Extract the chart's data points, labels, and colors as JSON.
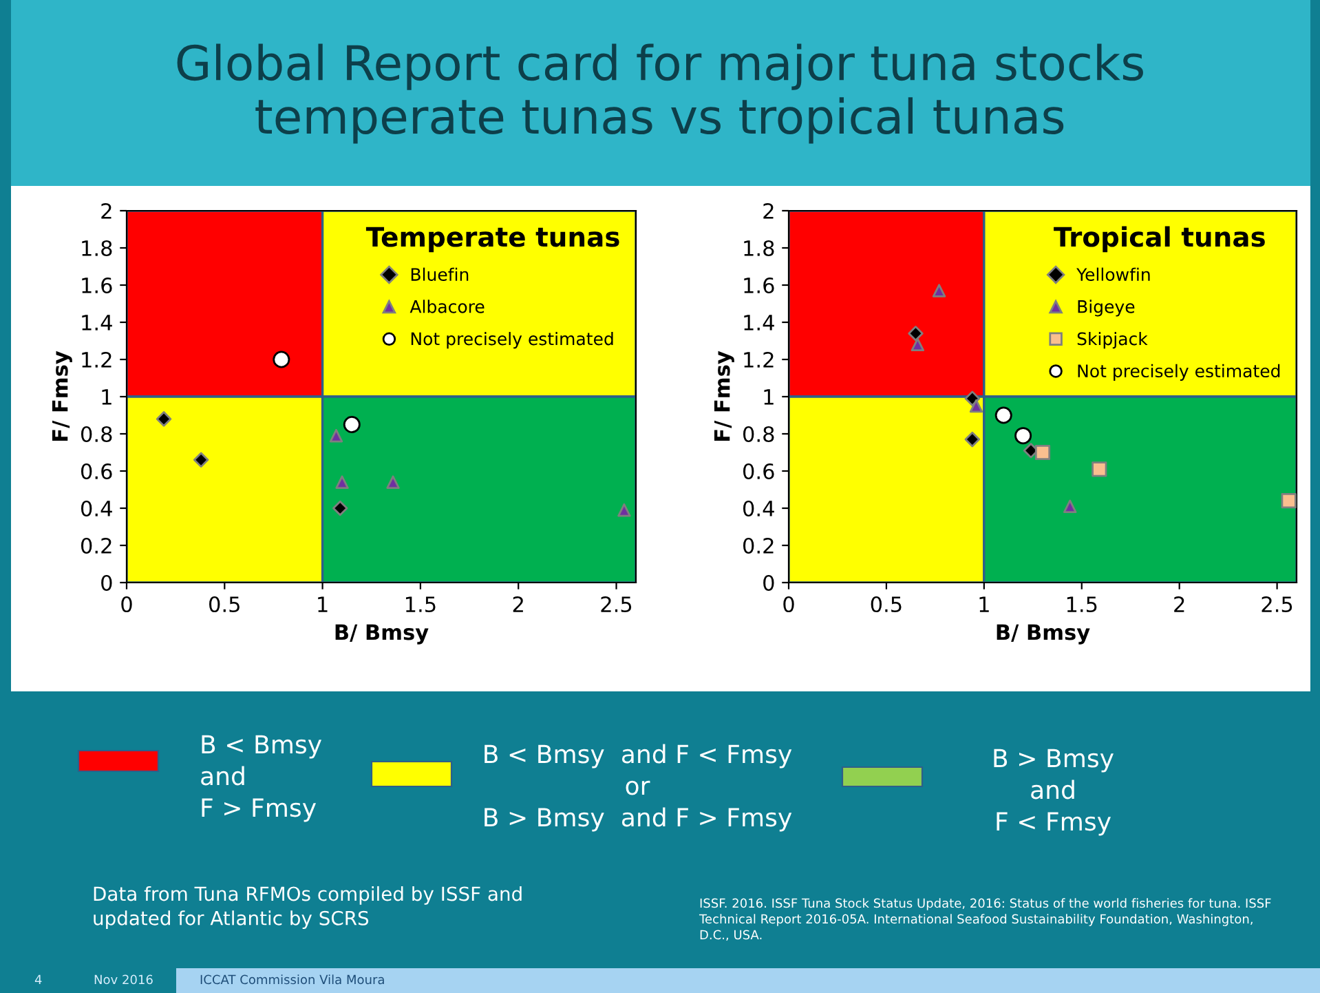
{
  "chart_data": [
    {
      "type": "scatter",
      "title": "Global Report card for major tuna stocks\ntemperate tunas vs tropical tunas",
      "legend_title": "Temperate tunas",
      "xlabel": "B/ Bmsy",
      "ylabel": "F/ Fmsy",
      "xlim": [
        0,
        2.6
      ],
      "ylim": [
        0,
        2
      ],
      "xticks": [
        0,
        0.5,
        1,
        1.5,
        2,
        2.5
      ],
      "yticks": [
        0,
        0.2,
        0.4,
        0.6,
        0.8,
        1,
        1.2,
        1.4,
        1.6,
        1.8,
        2
      ],
      "grid": false,
      "legend": "top right",
      "series": [
        {
          "name": "Bluefin",
          "color": "#000000",
          "marker": "diamond",
          "x": [
            0.19,
            0.38,
            1.09
          ],
          "values": [
            0.88,
            0.66,
            0.4
          ]
        },
        {
          "name": "Albacore",
          "color": "#7030a0",
          "marker": "triangle",
          "x": [
            1.07,
            1.1,
            1.36,
            2.54
          ],
          "values": [
            0.79,
            0.54,
            0.54,
            0.39
          ]
        },
        {
          "name": "Not precisely estimated",
          "color": "#ffffff",
          "marker": "circle",
          "x": [
            0.79,
            1.15
          ],
          "values": [
            1.2,
            0.85
          ]
        }
      ],
      "annotations": [
        "Data from Tuna RFMOs compiled by ISSF and\nupdated for Atlantic by SCRS",
        "ISSF. 2016. ISSF Tuna Stock Status Update, 2016: Status of the world fisheries for tuna. ISSF\nTechnical Report 2016-05A. International Seafood Sustainability Foundation, Washington,\nD.C., USA.",
        "4",
        "Nov 2016",
        "ICCAT Commission Vila Moura",
        "B < Bmsy\nand\nF > Fmsy",
        "B < Bmsy  and F < Fmsy\nor\nB > Bmsy  and F > Fmsy",
        "B > Bmsy\nand\nF < Fmsy"
      ]
    },
    {
      "type": "scatter",
      "legend_title": "Tropical tunas",
      "xlabel": "B/ Bmsy",
      "ylabel": "F/ Fmsy",
      "xlim": [
        0,
        2.6
      ],
      "ylim": [
        0,
        2
      ],
      "xticks": [
        0,
        0.5,
        1,
        1.5,
        2,
        2.5
      ],
      "yticks": [
        0,
        0.2,
        0.4,
        0.6,
        0.8,
        1,
        1.2,
        1.4,
        1.6,
        1.8,
        2
      ],
      "grid": false,
      "legend": "top right",
      "series": [
        {
          "name": "Yellowfin",
          "color": "#000000",
          "marker": "diamond",
          "x": [
            0.65,
            0.94,
            0.94,
            1.24
          ],
          "values": [
            1.34,
            0.99,
            0.77,
            0.71
          ]
        },
        {
          "name": "Bigeye",
          "color": "#7030a0",
          "marker": "triangle",
          "x": [
            0.77,
            0.66,
            0.96,
            1.44
          ],
          "values": [
            1.57,
            1.28,
            0.95,
            0.41
          ]
        },
        {
          "name": "Skipjack",
          "color": "#fabf8f",
          "marker": "square",
          "x": [
            1.3,
            1.59,
            2.56
          ],
          "values": [
            0.7,
            0.61,
            0.44
          ]
        },
        {
          "name": "Not precisely estimated",
          "color": "#ffffff",
          "marker": "circle",
          "x": [
            1.1,
            1.2
          ],
          "values": [
            0.9,
            0.79
          ]
        }
      ]
    }
  ]
}
